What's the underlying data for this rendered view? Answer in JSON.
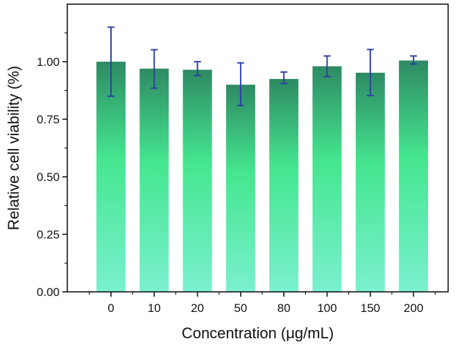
{
  "chart_data": {
    "type": "bar",
    "title": "",
    "xlabel": "Concentration (μg/mL)",
    "ylabel": "Relative cell viability (%)",
    "categories": [
      "0",
      "10",
      "20",
      "50",
      "80",
      "100",
      "150",
      "200"
    ],
    "values": [
      1.0,
      0.97,
      0.965,
      0.9,
      0.925,
      0.98,
      0.952,
      1.005
    ],
    "error_low": [
      0.85,
      0.885,
      0.94,
      0.81,
      0.905,
      0.935,
      0.853,
      0.99
    ],
    "error_high": [
      1.15,
      1.052,
      1.0,
      0.995,
      0.955,
      1.025,
      1.053,
      1.025
    ],
    "ylim": [
      0,
      1.25
    ],
    "yticks": [
      "0.00",
      "0.25",
      "0.50",
      "0.75",
      "1.00"
    ],
    "grid": false,
    "colors": {
      "bar_top": "#2e8a63",
      "bar_mid": "#45e68f",
      "bar_bottom": "#7af0cf",
      "error_bar": "#2f3fa6",
      "axis": "#111111"
    }
  }
}
